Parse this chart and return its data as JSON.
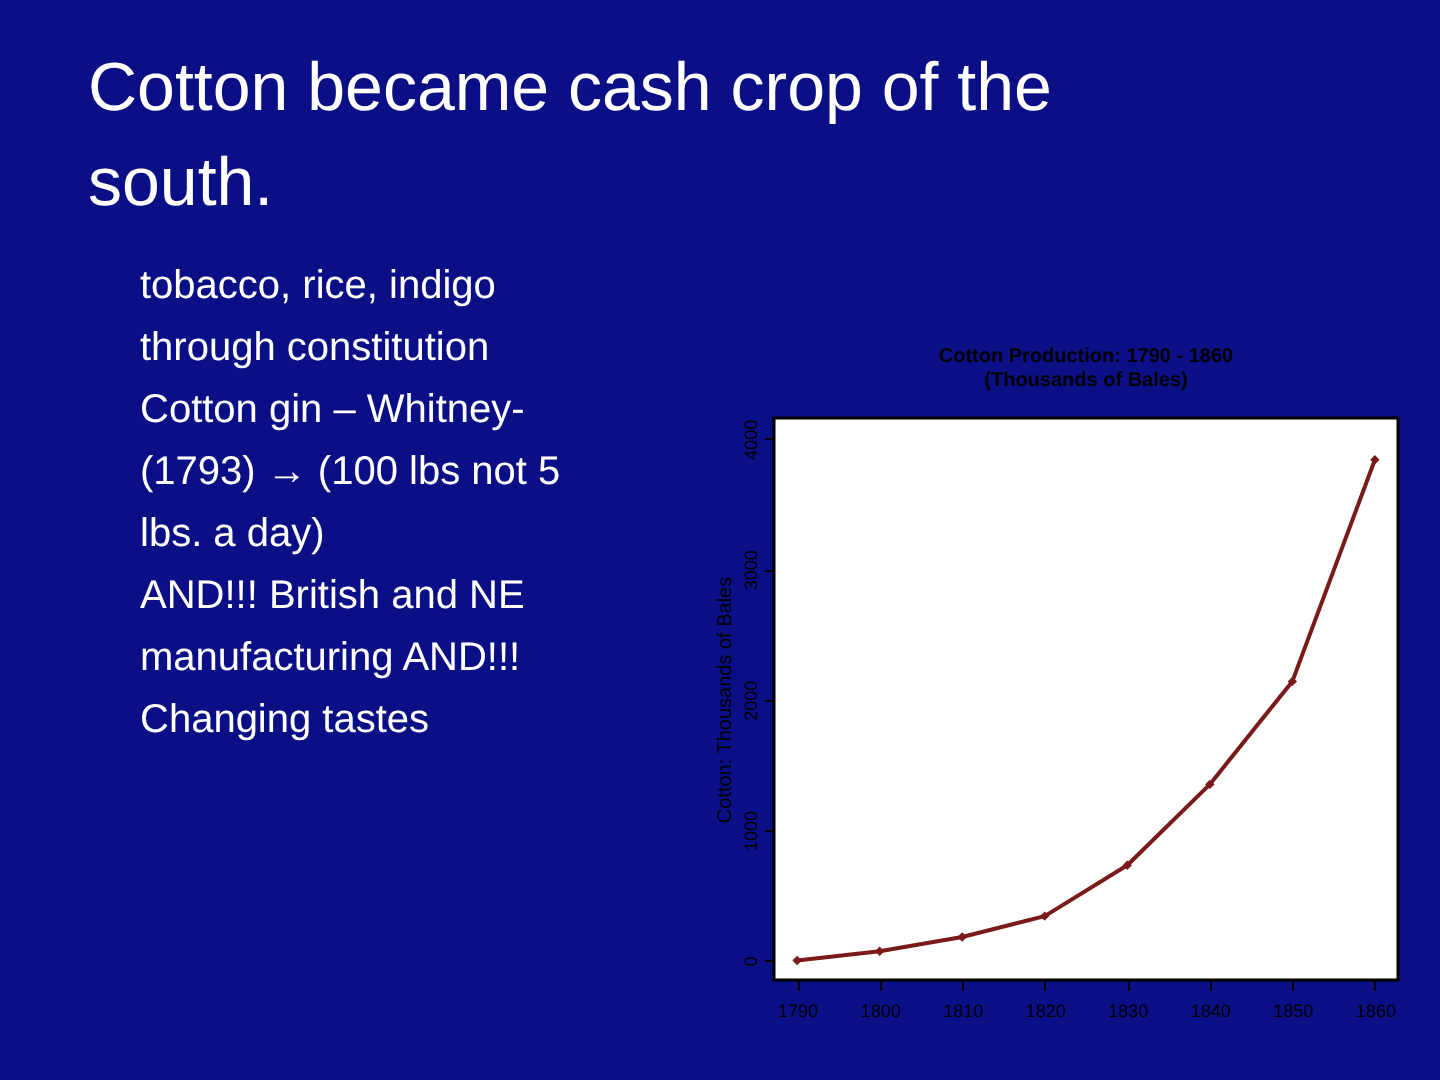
{
  "chart_data": {
    "type": "line",
    "title": "Cotton Production: 1790 - 1860",
    "subtitle": "(Thousands of Bales)",
    "ylabel": "Cotton: Thousands of Bales",
    "x": [
      1790,
      1800,
      1810,
      1820,
      1830,
      1840,
      1850,
      1860
    ],
    "series": [
      {
        "color": "#7a1a1a",
        "values": [
          0,
          70,
          180,
          340,
          730,
          1350,
          2140,
          3840
        ]
      }
    ],
    "xlim": [
      1787.2,
      1862.8
    ],
    "ylim": [
      -150,
      4160
    ],
    "xticks": [
      1790,
      1800,
      1810,
      1820,
      1830,
      1840,
      1850,
      1860
    ],
    "yticks": [
      0,
      1000,
      2000,
      3000,
      4000
    ],
    "marker": "diamond",
    "annotations": [
      "Cotton became cash crop of the\nsouth.",
      "tobacco, rice, indigo\nthrough constitution",
      "Cotton gin – Whitney-\n(1793) → (100 lbs not 5\nlbs. a day)",
      "AND!!! British and NE\nmanufacturing AND!!!\nChanging tastes"
    ]
  }
}
